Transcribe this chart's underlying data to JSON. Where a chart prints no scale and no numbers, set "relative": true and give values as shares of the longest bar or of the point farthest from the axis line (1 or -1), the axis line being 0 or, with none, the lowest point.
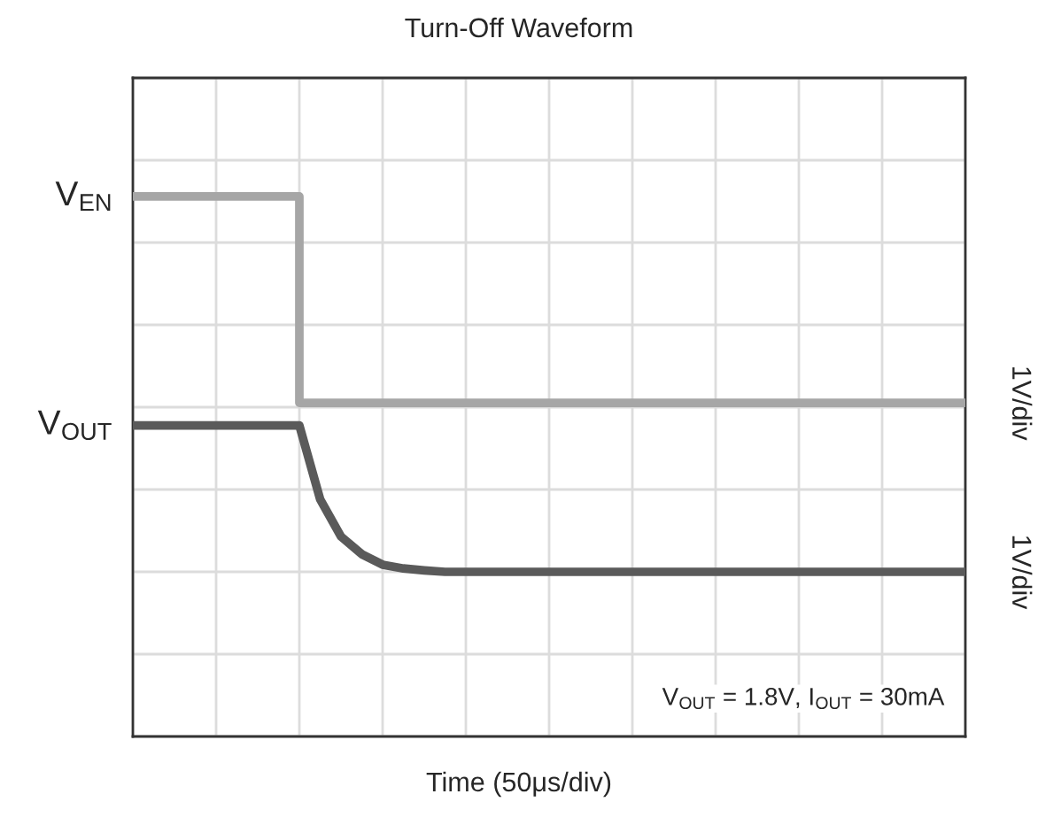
{
  "chart_data": {
    "type": "line",
    "title": "Turn-Off Waveform",
    "relative": true,
    "grid": true,
    "legend": false,
    "categories": [
      null,
      null,
      null,
      null,
      null,
      null,
      null,
      null,
      null,
      null,
      null,
      null,
      null,
      null,
      null,
      null,
      null,
      null,
      null,
      null,
      null,
      null,
      null,
      null,
      null,
      null,
      null,
      null,
      null,
      null,
      null,
      null,
      null,
      null,
      null,
      null,
      null,
      null,
      null,
      null,
      null
    ],
    "series": [
      {
        "name": "V$_{EN}$",
        "type": "step",
        "color": "#a6a6a6",
        "values": [
          1,
          1,
          1,
          1,
          1,
          1,
          1,
          1,
          1,
          0.45,
          0.45,
          0.45,
          0.45,
          0.45,
          0.45,
          0.45,
          0.45,
          0.45,
          0.45,
          0.45,
          0.45,
          0.45,
          0.45,
          0.45,
          0.45,
          0.45,
          0.45,
          0.45,
          0.45,
          0.45,
          0.45,
          0.45,
          0.45,
          0.45,
          0.45,
          0.45,
          0.45,
          0.45,
          0.45,
          0.45,
          0.45
        ]
      },
      {
        "name": "V$_{OUT}$",
        "color": "#5a5a5a",
        "values": [
          0.39,
          0.39,
          0.39,
          0.39,
          0.39,
          0.39,
          0.39,
          0.39,
          0.39,
          0.193,
          0.094,
          0.047,
          0.019,
          0.009,
          0.004,
          0,
          0,
          0,
          0,
          0,
          0,
          0,
          0,
          0,
          0,
          0,
          0,
          0,
          0,
          0,
          0,
          0,
          0,
          0,
          0,
          0,
          0,
          0,
          0,
          0,
          0
        ]
      }
    ],
    "annotations": [
      "Time (50μs/div)",
      "V$_{OUT}$ = 1.8V, I$_{OUT}$ = 30mA",
      "1V/div",
      "1V/div"
    ]
  }
}
